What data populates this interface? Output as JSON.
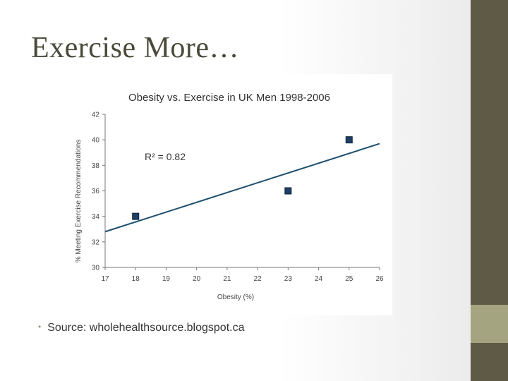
{
  "slide": {
    "title": "Exercise More…",
    "bullet": "Source: wholehealthsource.blogspot.ca"
  },
  "colors": {
    "sidebar": "#5f5a46",
    "sidebar_accent": "#a5a481",
    "marker": "#1f3f66",
    "trendline": "#1d4f6e"
  },
  "chart_data": {
    "type": "scatter",
    "title": "Obesity vs. Exercise in UK Men 1998-2006",
    "xlabel": "Obesity (%)",
    "ylabel": "% Meeting Exercise Recommendations",
    "xlim": [
      17,
      26
    ],
    "ylim": [
      30,
      42
    ],
    "x_ticks": [
      "17",
      "18",
      "19",
      "20",
      "21",
      "22",
      "23",
      "24",
      "25",
      "26"
    ],
    "y_ticks": [
      "30",
      "32",
      "34",
      "36",
      "38",
      "40",
      "42"
    ],
    "series": [
      {
        "points": [
          {
            "x": 18,
            "y": 34
          },
          {
            "x": 23,
            "y": 36
          },
          {
            "x": 25,
            "y": 40
          }
        ]
      }
    ],
    "trendline": {
      "x": [
        17,
        26
      ],
      "y": [
        32.8,
        39.7
      ]
    },
    "annotation": "R² = 0.82",
    "grid": false,
    "legend": "none"
  }
}
